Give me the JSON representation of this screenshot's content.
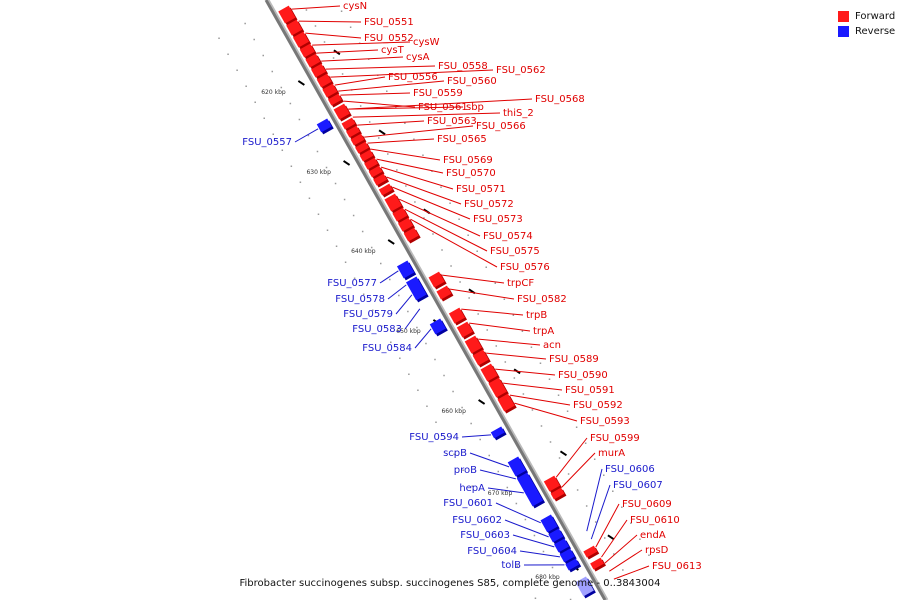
{
  "legend": [
    {
      "label": "Forward",
      "color": "#ff1a1a"
    },
    {
      "label": "Reverse",
      "color": "#1a1aff"
    }
  ],
  "caption": "Fibrobacter succinogenes subsp. succinogenes S85, complete genome - 0..3843004",
  "ticks": [
    "620 kbp",
    "630 kbp",
    "640 kbp",
    "650 kbp",
    "660 kbp",
    "670 kbp",
    "680 kbp"
  ],
  "forward_labels": [
    "cysN",
    "FSU_0551",
    "FSU_0552",
    "cysW",
    "cysT",
    "cysA",
    "FSU_0558",
    "FSU_0562",
    "FSU_0556",
    "FSU_0560",
    "FSU_0559",
    "FSU_0568",
    "FSU_0561",
    "sbp",
    "thiS_2",
    "FSU_0563",
    "FSU_0566",
    "FSU_0565",
    "FSU_0569",
    "FSU_0570",
    "FSU_0571",
    "FSU_0572",
    "FSU_0573",
    "FSU_0574",
    "FSU_0575",
    "FSU_0576",
    "trpCF",
    "FSU_0582",
    "trpB",
    "trpA",
    "acn",
    "FSU_0589",
    "FSU_0590",
    "FSU_0591",
    "FSU_0592",
    "FSU_0593",
    "FSU_0599",
    "murA",
    "FSU_0609",
    "FSU_0610",
    "endA",
    "rpsD",
    "FSU_0613"
  ],
  "reverse_labels": [
    "FSU_0557",
    "FSU_0577",
    "FSU_0578",
    "FSU_0579",
    "FSU_0583",
    "FSU_0584",
    "FSU_0594",
    "scpB",
    "proB",
    "hepA",
    "FSU_0601",
    "FSU_0602",
    "FSU_0603",
    "FSU_0604",
    "tolB",
    "FSU_0606",
    "FSU_0607"
  ]
}
